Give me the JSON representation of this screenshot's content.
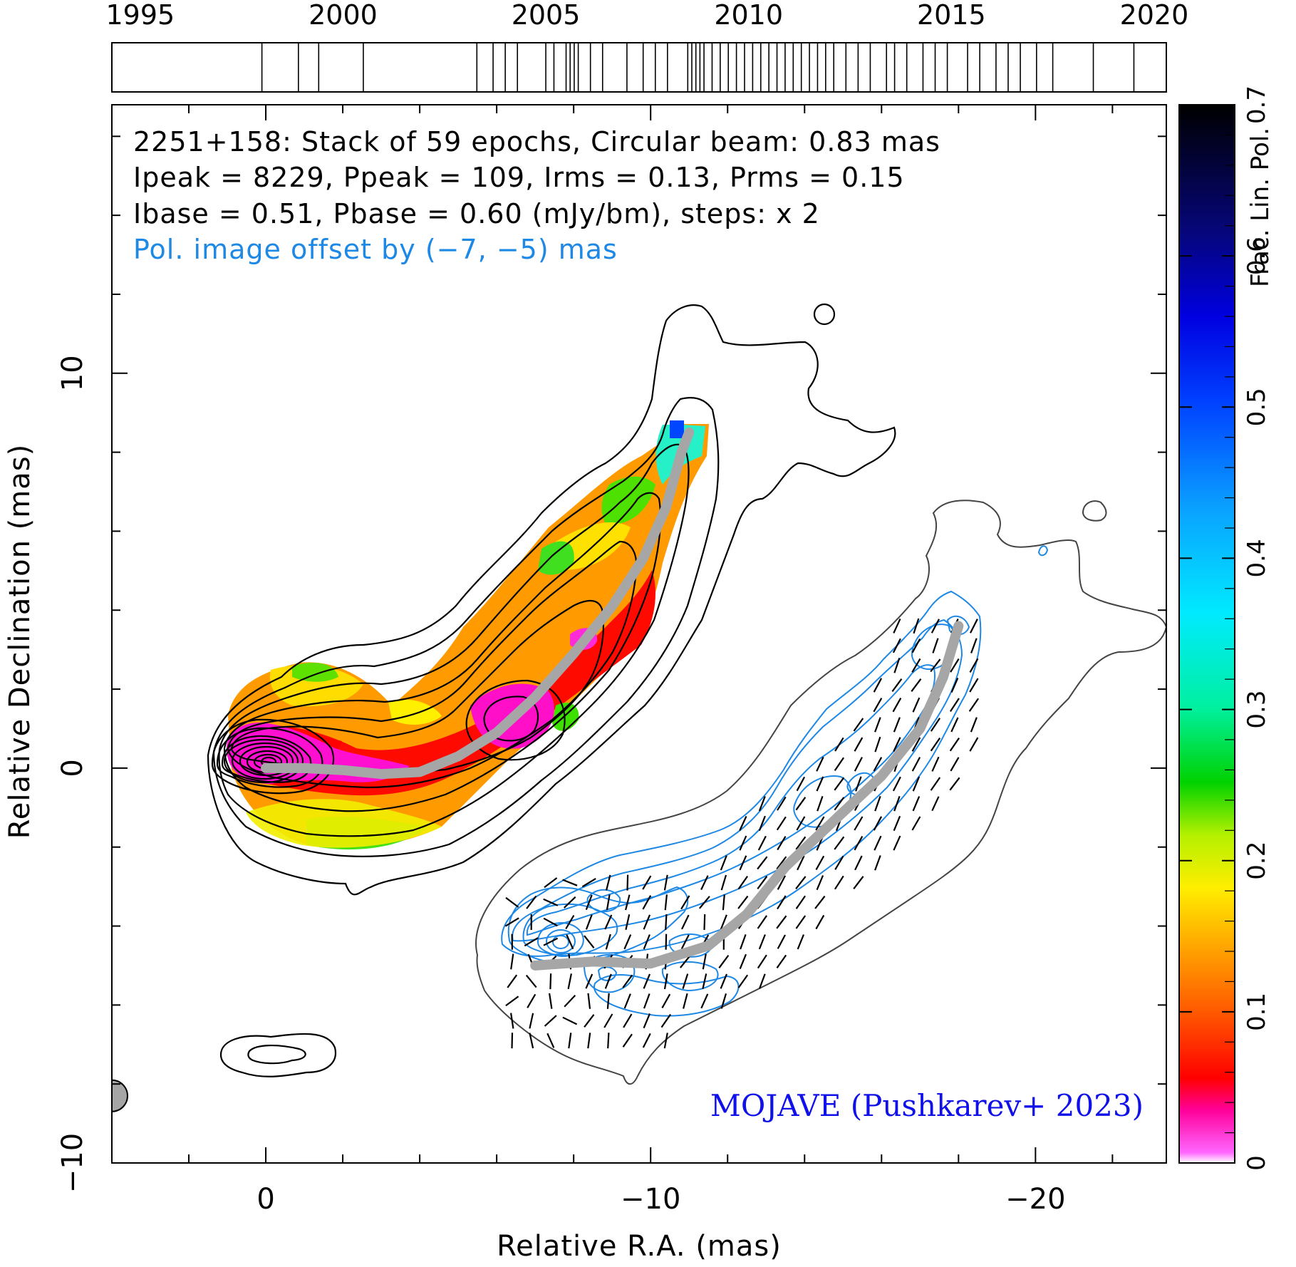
{
  "chart_data": {
    "type": "contour_map",
    "header": {
      "line1": "2251+158: Stack of 59 epochs, Circular beam: 0.83 mas",
      "line2": "Ipeak = 8229, Ppeak = 109, Irms = 0.13, Prms = 0.15",
      "line3": "Ibase = 0.51, Pbase = 0.60 (mJy/bm), steps: x 2",
      "line4": "Pol. image offset by (−7, −5) mas"
    },
    "credit": "MOJAVE (Pushkarev+ 2023)",
    "xlabel": "Relative R.A. (mas)",
    "ylabel": "Relative Declination (mas)",
    "colorbar_label": "Frac. Lin. Pol.",
    "xlim": [
      4,
      -23.4
    ],
    "ylim": [
      -10,
      16.8
    ],
    "x_ticks": [
      0,
      -10,
      -20
    ],
    "x_tick_labels": [
      "0",
      "−10",
      "−20"
    ],
    "y_ticks": [
      -10,
      0,
      10
    ],
    "y_tick_labels": [
      "−10",
      "0",
      "10"
    ],
    "colorbar_range": [
      0,
      0.7
    ],
    "colorbar_ticks": [
      0,
      0.1,
      0.2,
      0.3,
      0.4,
      0.5,
      0.6,
      0.7
    ],
    "colorbar_tick_labels": [
      "0",
      "0.1",
      "0.2",
      "0.3",
      "0.4",
      "0.5",
      "0.6",
      "0.7"
    ],
    "epoch_axis": {
      "range": [
        1994.3,
        2020.3
      ],
      "tick_years": [
        1995,
        2000,
        2005,
        2010,
        2015,
        2020
      ],
      "epochs": [
        1998.0,
        1998.9,
        1999.4,
        2000.5,
        2003.3,
        2003.7,
        2004.0,
        2004.3,
        2005.0,
        2005.2,
        2005.5,
        2005.6,
        2005.7,
        2005.8,
        2006.1,
        2006.4,
        2007.0,
        2007.4,
        2007.7,
        2008.0,
        2008.5,
        2008.6,
        2008.7,
        2008.8,
        2008.9,
        2009.1,
        2009.3,
        2009.5,
        2009.7,
        2009.9,
        2010.1,
        2010.3,
        2010.5,
        2010.7,
        2010.9,
        2011.1,
        2011.3,
        2011.5,
        2011.7,
        2011.9,
        2012.1,
        2012.4,
        2012.7,
        2013.0,
        2013.4,
        2013.6,
        2013.9,
        2014.3,
        2014.6,
        2014.9,
        2015.4,
        2015.7,
        2016.1,
        2016.4,
        2016.7,
        2017.1,
        2017.5,
        2018.5,
        2019.5
      ]
    },
    "beam": {
      "center": [
        4.0,
        -8.3
      ],
      "diameter_mas": 0.83
    },
    "jet_ridge_total": [
      [
        0,
        0.0
      ],
      [
        -1.0,
        0.0
      ],
      [
        -2.0,
        -0.05
      ],
      [
        -3.0,
        -0.15
      ],
      [
        -4.0,
        -0.1
      ],
      [
        -5.0,
        0.3
      ],
      [
        -6.0,
        0.9
      ],
      [
        -7.0,
        1.8
      ],
      [
        -8.0,
        2.9
      ],
      [
        -9.0,
        4.1
      ],
      [
        -9.8,
        5.3
      ],
      [
        -10.4,
        6.6
      ],
      [
        -10.8,
        8.0
      ],
      [
        -11.0,
        8.5
      ]
    ],
    "jet_ridge_polarization": [
      [
        -7.0,
        -5.0
      ],
      [
        -8.5,
        -4.9
      ],
      [
        -10.0,
        -4.95
      ],
      [
        -11.5,
        -4.5
      ],
      [
        -12.5,
        -3.7
      ],
      [
        -13.5,
        -2.5
      ],
      [
        -14.8,
        -1.3
      ],
      [
        -16.0,
        -0.2
      ],
      [
        -17.0,
        1.0
      ],
      [
        -17.6,
        2.3
      ],
      [
        -18.0,
        3.6
      ]
    ],
    "polarization_offset": [
      -7,
      -5
    ]
  }
}
